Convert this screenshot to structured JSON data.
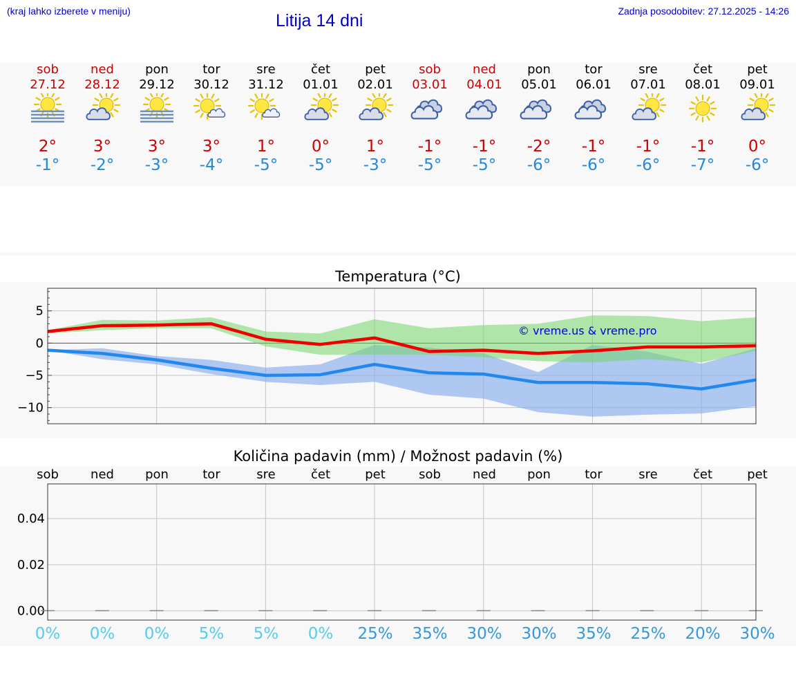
{
  "header": {
    "hint": "(kraj lahko izberete v meniju)",
    "title": "Litija 14 dni",
    "updated": "Zadnja posodobitev: 27.12.2025 - 14:26"
  },
  "colors": {
    "weekend": "#cc0000",
    "weekday": "#000000",
    "max": "#ee0000",
    "min": "#2288ee",
    "pct_low": "#55ccee",
    "pct_high": "#3399dd"
  },
  "days": [
    {
      "name": "sob",
      "date": "27.12",
      "weekend": true,
      "icon": "sun-fog-icon",
      "max": "2°",
      "min": "-1°"
    },
    {
      "name": "ned",
      "date": "28.12",
      "weekend": true,
      "icon": "sun-cloud-icon",
      "max": "3°",
      "min": "-2°"
    },
    {
      "name": "pon",
      "date": "29.12",
      "weekend": false,
      "icon": "sun-fog-icon",
      "max": "3°",
      "min": "-3°"
    },
    {
      "name": "tor",
      "date": "30.12",
      "weekend": false,
      "icon": "sun-small-cloud-icon",
      "max": "3°",
      "min": "-4°"
    },
    {
      "name": "sre",
      "date": "31.12",
      "weekend": false,
      "icon": "sun-small-cloud-icon",
      "max": "1°",
      "min": "-5°"
    },
    {
      "name": "čet",
      "date": "01.01",
      "weekend": false,
      "icon": "sun-cloud-icon",
      "max": "0°",
      "min": "-5°"
    },
    {
      "name": "pet",
      "date": "02.01",
      "weekend": false,
      "icon": "sun-cloud-icon",
      "max": "1°",
      "min": "-3°"
    },
    {
      "name": "sob",
      "date": "03.01",
      "weekend": true,
      "icon": "cloudy-icon",
      "max": "-1°",
      "min": "-5°"
    },
    {
      "name": "ned",
      "date": "04.01",
      "weekend": true,
      "icon": "cloudy-icon",
      "max": "-1°",
      "min": "-5°"
    },
    {
      "name": "pon",
      "date": "05.01",
      "weekend": false,
      "icon": "cloudy-icon",
      "max": "-2°",
      "min": "-6°"
    },
    {
      "name": "tor",
      "date": "06.01",
      "weekend": false,
      "icon": "cloudy-icon",
      "max": "-1°",
      "min": "-6°"
    },
    {
      "name": "sre",
      "date": "07.01",
      "weekend": false,
      "icon": "sun-cloud-icon",
      "max": "-1°",
      "min": "-6°"
    },
    {
      "name": "čet",
      "date": "08.01",
      "weekend": false,
      "icon": "sun-icon",
      "max": "-1°",
      "min": "-7°"
    },
    {
      "name": "pet",
      "date": "09.01",
      "weekend": false,
      "icon": "sun-cloud-icon",
      "max": "0°",
      "min": "-6°"
    }
  ],
  "chart_data": [
    {
      "type": "line",
      "title": "Temperatura (°C)",
      "watermark": "© vreme.us & vreme.pro",
      "ylim": [
        -12.5,
        8.5
      ],
      "yticks": [
        5,
        0,
        -5,
        -10
      ],
      "ytick_labels": [
        "5",
        "0",
        "−5",
        "−10"
      ],
      "x": [
        0,
        1,
        2,
        3,
        4,
        5,
        6,
        7,
        8,
        9,
        10,
        11,
        12,
        13
      ],
      "series": [
        {
          "name": "max",
          "values": [
            1.8,
            2.7,
            2.8,
            3.0,
            0.6,
            -0.2,
            0.8,
            -1.3,
            -1.1,
            -1.6,
            -1.2,
            -0.6,
            -0.6,
            -0.4
          ],
          "band_low": [
            1.5,
            2.0,
            2.3,
            2.3,
            -0.5,
            -1.8,
            -1.8,
            -1.8,
            -2.2,
            -2.8,
            -3.0,
            -2.5,
            -3.0,
            -1.2
          ],
          "band_high": [
            2.0,
            3.6,
            3.5,
            4.0,
            1.8,
            1.5,
            3.7,
            2.3,
            2.8,
            3.0,
            4.3,
            4.2,
            3.4,
            4.0
          ]
        },
        {
          "name": "min",
          "values": [
            -1.1,
            -1.6,
            -2.6,
            -3.9,
            -5.0,
            -4.9,
            -3.3,
            -4.6,
            -4.8,
            -6.1,
            -6.1,
            -6.3,
            -7.1,
            -5.7
          ],
          "band_low": [
            -1.1,
            -2.5,
            -3.3,
            -4.8,
            -6.0,
            -6.5,
            -6.0,
            -8.0,
            -8.6,
            -10.7,
            -11.4,
            -11.1,
            -10.9,
            -9.8
          ],
          "band_high": [
            -1.1,
            -0.8,
            -2.0,
            -2.6,
            -3.8,
            -3.3,
            -0.3,
            -0.7,
            -1.6,
            -4.5,
            -0.3,
            -1.3,
            -3.2,
            -0.8
          ]
        }
      ]
    },
    {
      "type": "bar",
      "title": "Količina padavin (mm) / Možnost padavin (%)",
      "ylim": [
        -0.004,
        0.055
      ],
      "yticks": [
        0.0,
        0.02,
        0.04
      ],
      "ytick_labels": [
        "0.00",
        "0.02",
        "0.04"
      ],
      "categories": [
        "sob",
        "ned",
        "pon",
        "tor",
        "sre",
        "čet",
        "pet",
        "sob",
        "ned",
        "pon",
        "tor",
        "sre",
        "čet",
        "pet"
      ],
      "values": [
        0,
        0,
        0,
        0,
        0,
        0,
        0,
        0,
        0,
        0,
        0,
        0,
        0,
        0
      ],
      "chance": [
        "0%",
        "0%",
        "0%",
        "5%",
        "5%",
        "0%",
        "25%",
        "35%",
        "30%",
        "30%",
        "35%",
        "25%",
        "20%",
        "30%"
      ]
    }
  ]
}
